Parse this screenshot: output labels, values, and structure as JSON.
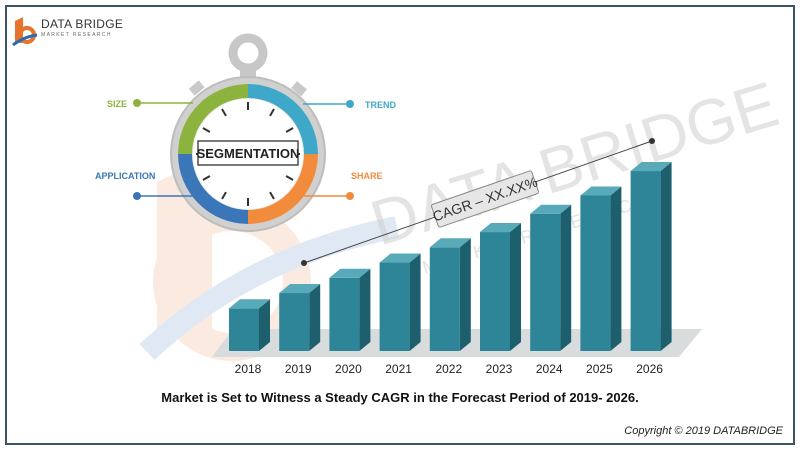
{
  "brand": {
    "name": "DATA BRIDGE",
    "tagline": "MARKET RESEARCH",
    "watermark_main": "DATA BRIDGE",
    "watermark_sub": "M A R K E T   R E S E A R C H",
    "colors": {
      "orange": "#e8732c",
      "blue": "#2a6cb0"
    }
  },
  "segmentation": {
    "center_label": "SEGMENTATION",
    "labels": [
      {
        "text": "SIZE",
        "color": "#8db33f"
      },
      {
        "text": "TREND",
        "color": "#3fa7c8"
      },
      {
        "text": "APPLICATION",
        "color": "#3b76b8"
      },
      {
        "text": "SHARE",
        "color": "#f28c3c"
      }
    ]
  },
  "cagr_label": "CAGR – XX.XX%",
  "caption": "Market is Set to Witness a Steady CAGR in the Forecast Period of 2019- 2026.",
  "copyright": "Copyright © 2019 DATABRIDGE",
  "chart_data": {
    "type": "bar",
    "categories": [
      "2018",
      "2019",
      "2020",
      "2021",
      "2022",
      "2023",
      "2024",
      "2025",
      "2026"
    ],
    "values": [
      14,
      19,
      24,
      29,
      34,
      39,
      45,
      51,
      59
    ],
    "title": "",
    "xlabel": "",
    "ylabel": "",
    "ylim": [
      0,
      60
    ],
    "grid": false,
    "colors": {
      "front": "#2e8597",
      "side": "#1d5f6d",
      "top": "#58aab9"
    }
  }
}
